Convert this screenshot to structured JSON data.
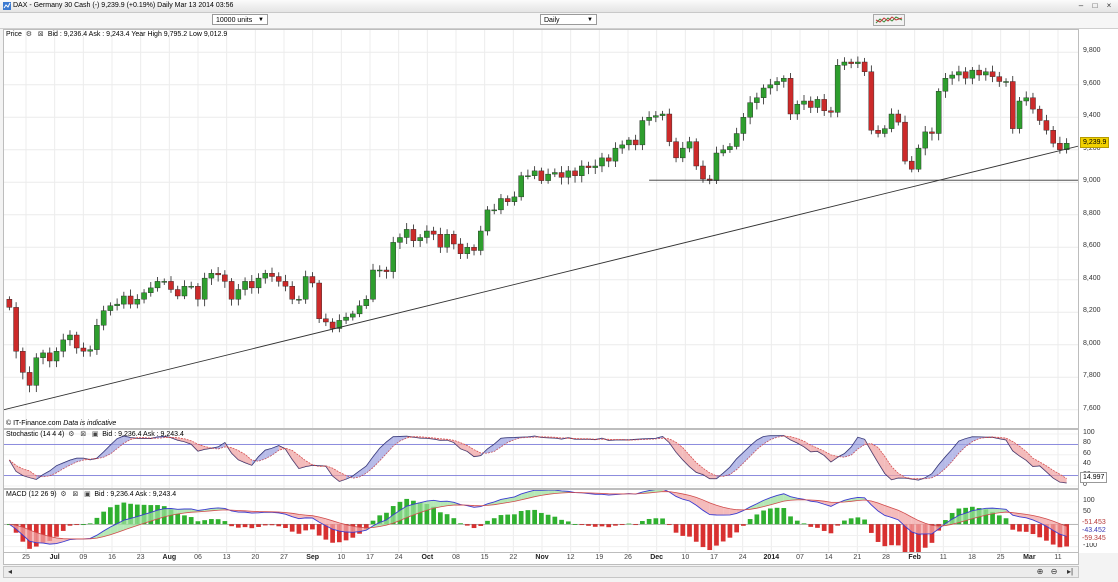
{
  "window": {
    "title": "DAX - Germany 30 Cash (-)   9,239.9 (+0.19%)   Daily  Mar 13 2014 03:56"
  },
  "toolbar": {
    "units": "10000 units",
    "timeframe": "Daily"
  },
  "price_pane": {
    "label": "Price",
    "info": "Bid : 9,236.4 Ask : 9,243.4 Year High 9,795.2 Low 9,012.9",
    "last_price_tag": "9,239.9",
    "watermark_brand": "© IT-Finance.com",
    "watermark_note": "Data is indicative"
  },
  "stoch_pane": {
    "label": "Stochastic (14 4 4)",
    "info": "Bid : 9,236.4 Ask : 9,243.4",
    "value_tag": "14.997",
    "upper_level": 80,
    "lower_level": 20
  },
  "macd_pane": {
    "label": "MACD (12 26 9)",
    "info": "Bid : 9,236.4 Ask : 9,243.4",
    "tags": [
      "-51.453",
      "-43.452",
      "-59.345"
    ]
  },
  "colors": {
    "up_candle": "#2e9e2e",
    "down_candle": "#cc2a2a",
    "last_tag_bg": "#f2d200",
    "stoch_tag_bg": "#ffffff",
    "level_line": "#6b6bd6"
  },
  "icons": [
    "app-icon",
    "wrench-icon",
    "close-icon",
    "minimize-icon",
    "maximize-icon",
    "chart-type-icon",
    "zoom-in-icon",
    "zoom-out-icon",
    "scroll-end-icon"
  ],
  "chart_data": [
    {
      "type": "candlestick",
      "title": "DAX - Germany 30 Cash (-)",
      "ylim": [
        7500,
        9900
      ],
      "yticks": [
        7600,
        7800,
        8000,
        8200,
        8400,
        8600,
        8800,
        9000,
        9200,
        9400,
        9600,
        9800
      ],
      "ytick_labels": [
        "7,600",
        "7,800",
        "8,000",
        "8,200",
        "8,400",
        "8,600",
        "8,800",
        "9,000",
        "9,200",
        "9,400",
        "9,600",
        "9,800"
      ],
      "xtick_labels": [
        "25",
        "Jul",
        "09",
        "16",
        "23",
        "Aug",
        "06",
        "13",
        "20",
        "27",
        "Sep",
        "10",
        "17",
        "24",
        "Oct",
        "08",
        "15",
        "22",
        "Nov",
        "12",
        "19",
        "26",
        "Dec",
        "10",
        "17",
        "24",
        "2014",
        "07",
        "14",
        "21",
        "28",
        "Feb",
        "11",
        "18",
        "25",
        "Mar",
        "11"
      ],
      "major_xticks": [
        "Jul",
        "Aug",
        "Sep",
        "Oct",
        "Nov",
        "Dec",
        "2014",
        "Feb",
        "Mar"
      ],
      "close": [
        8230,
        7960,
        7830,
        7750,
        7920,
        7950,
        7900,
        7960,
        8030,
        8060,
        7980,
        7960,
        7970,
        8120,
        8210,
        8240,
        8250,
        8300,
        8250,
        8280,
        8320,
        8350,
        8390,
        8390,
        8340,
        8300,
        8360,
        8360,
        8280,
        8410,
        8440,
        8430,
        8390,
        8280,
        8340,
        8390,
        8350,
        8410,
        8440,
        8420,
        8390,
        8360,
        8280,
        8280,
        8420,
        8380,
        8160,
        8140,
        8100,
        8150,
        8170,
        8190,
        8240,
        8280,
        8460,
        8460,
        8450,
        8630,
        8660,
        8710,
        8640,
        8660,
        8700,
        8680,
        8600,
        8680,
        8620,
        8560,
        8600,
        8580,
        8700,
        8830,
        8830,
        8900,
        8880,
        8910,
        9040,
        9040,
        9070,
        9010,
        9050,
        9060,
        9030,
        9070,
        9040,
        9100,
        9090,
        9100,
        9150,
        9130,
        9210,
        9230,
        9260,
        9230,
        9380,
        9400,
        9410,
        9420,
        9250,
        9150,
        9210,
        9250,
        9100,
        9020,
        9010,
        9180,
        9200,
        9220,
        9300,
        9400,
        9490,
        9520,
        9580,
        9600,
        9620,
        9640,
        9420,
        9480,
        9500,
        9460,
        9510,
        9440,
        9430,
        9720,
        9740,
        9730,
        9740,
        9680,
        9320,
        9300,
        9330,
        9420,
        9370,
        9130,
        9080,
        9210,
        9310,
        9300,
        9560,
        9640,
        9660,
        9680,
        9640,
        9690,
        9660,
        9680,
        9650,
        9620,
        9620,
        9330,
        9500,
        9520,
        9450,
        9380,
        9320,
        9240,
        9200,
        9240
      ],
      "support_level": 9012.9
    },
    {
      "type": "line",
      "title": "Stochastic (14 4 4)",
      "ylim": [
        0,
        100
      ],
      "yticks": [
        0,
        20,
        40,
        60,
        80,
        100
      ],
      "levels": [
        20,
        80
      ],
      "last_value": 14.997
    },
    {
      "type": "bar",
      "title": "MACD (12 26 9)",
      "ylim": [
        -115,
        135
      ],
      "yticks": [
        -100,
        -50,
        0,
        50,
        100
      ],
      "last_values": [
        -51.453,
        -43.452,
        -59.345
      ]
    }
  ]
}
